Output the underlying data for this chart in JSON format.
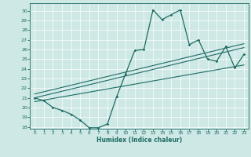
{
  "xlabel": "Humidex (Indice chaleur)",
  "xlim": [
    -0.5,
    23.5
  ],
  "ylim": [
    17.8,
    30.8
  ],
  "yticks": [
    18,
    19,
    20,
    21,
    22,
    23,
    24,
    25,
    26,
    27,
    28,
    29,
    30
  ],
  "xticks": [
    0,
    1,
    2,
    3,
    4,
    5,
    6,
    7,
    8,
    9,
    10,
    11,
    12,
    13,
    14,
    15,
    16,
    17,
    18,
    19,
    20,
    21,
    22,
    23
  ],
  "bg_color": "#cde8e5",
  "line_color": "#1f6b65",
  "zigzag_x": [
    0,
    1,
    2,
    3,
    4,
    5,
    6,
    7,
    8,
    9,
    10,
    11,
    12,
    13,
    14,
    15,
    16,
    17,
    18,
    19,
    20,
    21,
    22,
    23
  ],
  "zigzag_y": [
    21.0,
    20.7,
    20.0,
    19.7,
    19.3,
    18.7,
    17.9,
    17.9,
    18.3,
    21.1,
    23.5,
    25.9,
    26.0,
    30.1,
    29.1,
    29.6,
    30.1,
    26.5,
    27.0,
    25.0,
    24.8,
    26.3,
    24.1,
    25.5
  ],
  "trend1_x": [
    0,
    23
  ],
  "trend1_y": [
    21.0,
    26.2
  ],
  "trend2_x": [
    0,
    23
  ],
  "trend2_y": [
    21.4,
    26.6
  ],
  "trend3_x": [
    0,
    23
  ],
  "trend3_y": [
    20.6,
    24.4
  ]
}
